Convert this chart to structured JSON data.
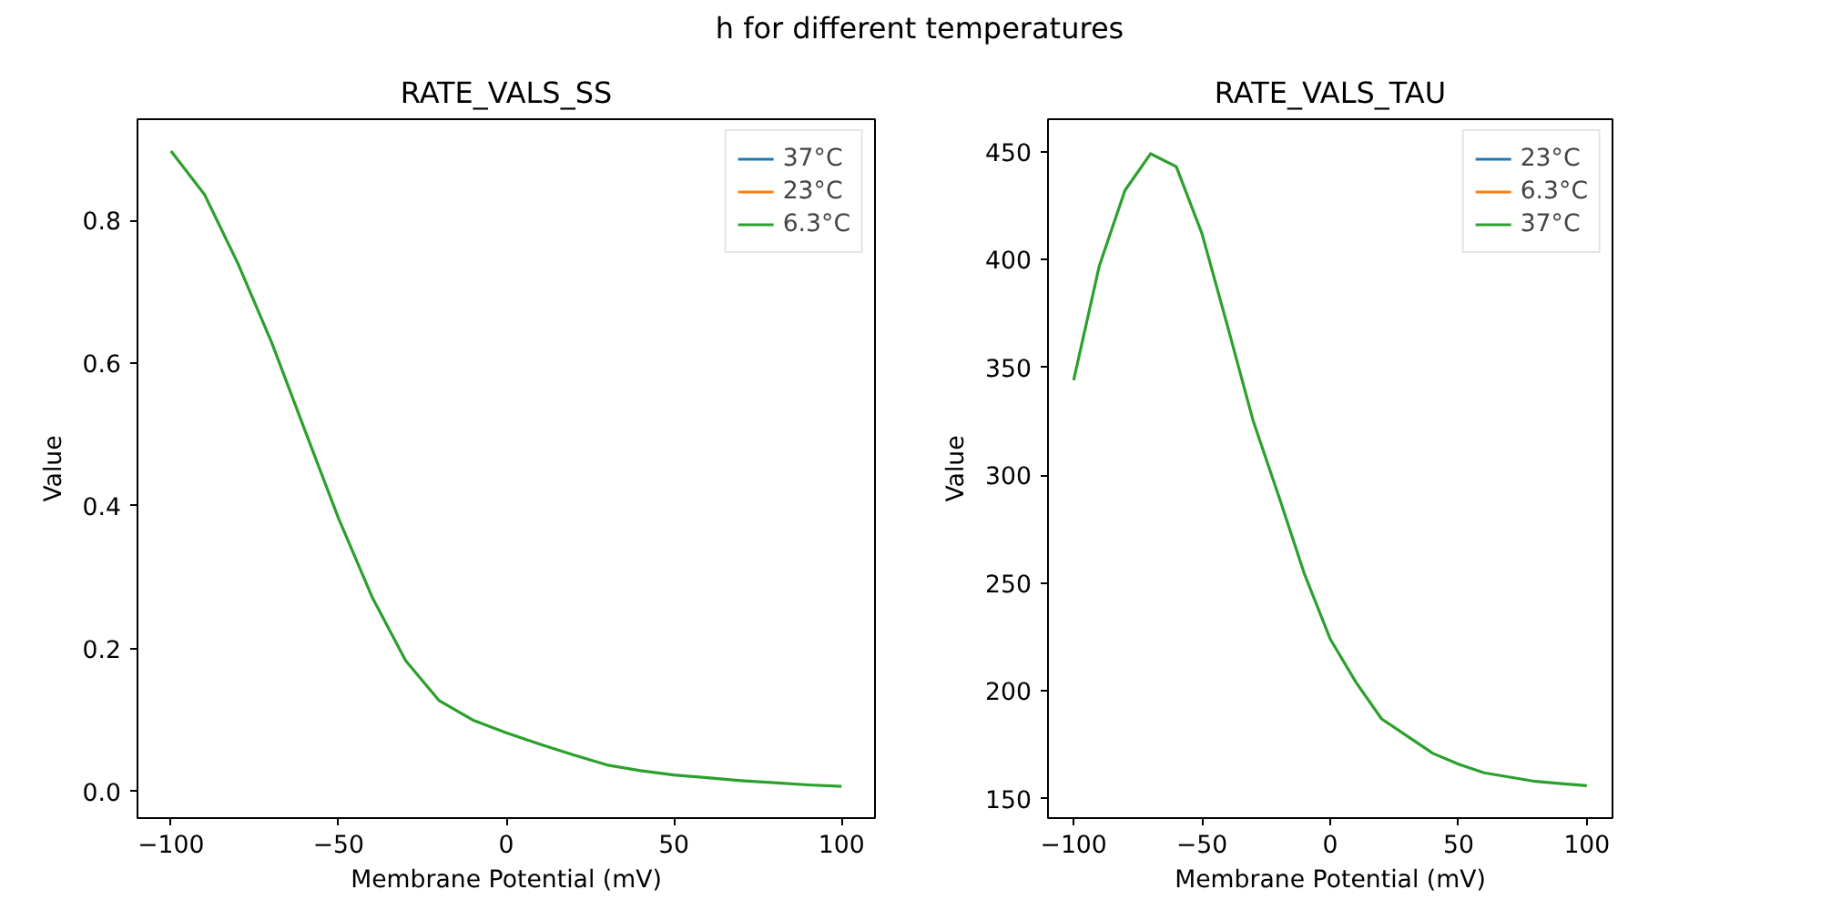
{
  "chart_data": [
    {
      "type": "line",
      "title": "RATE_VALS_SS",
      "xlabel": "Membrane Potential (mV)",
      "ylabel": "Value",
      "annotations": [
        "h for different temperatures"
      ],
      "x": [
        -100,
        -90,
        -80,
        -70,
        -60,
        -50,
        -40,
        -30,
        -20,
        -10,
        0,
        10,
        20,
        30,
        40,
        50,
        60,
        70,
        80,
        90,
        100
      ],
      "series": [
        {
          "name": "37°C",
          "color": "#1f77b4",
          "values": [
            null,
            null,
            null,
            null,
            null,
            null,
            null,
            null,
            null,
            null,
            null,
            null,
            null,
            null,
            null,
            null,
            null,
            null,
            null,
            null,
            null
          ]
        },
        {
          "name": "23°C",
          "color": "#ff7f0e",
          "values": [
            null,
            null,
            null,
            null,
            null,
            null,
            null,
            null,
            null,
            null,
            null,
            null,
            null,
            null,
            null,
            null,
            null,
            null,
            null,
            null,
            null
          ]
        },
        {
          "name": "6.3°C",
          "color": "#2ca02c",
          "values": [
            0.897,
            0.836,
            0.739,
            0.629,
            0.505,
            0.382,
            0.272,
            0.183,
            0.127,
            0.1,
            0.082,
            0.066,
            0.051,
            0.037,
            0.029,
            0.023,
            0.019,
            0.015,
            0.012,
            0.009,
            0.007
          ]
        }
      ],
      "xlim": [
        -110,
        110
      ],
      "xticks": [
        -100,
        -50,
        0,
        50,
        100
      ],
      "ylim": [
        -0.0375,
        0.9415
      ],
      "yticks": [
        {
          "value": 0,
          "label": "0.0"
        },
        0.2,
        0.4,
        0.6,
        0.8
      ],
      "grid": false,
      "legend": "top right"
    },
    {
      "type": "line",
      "title": "RATE_VALS_TAU",
      "xlabel": "Membrane Potential (mV)",
      "ylabel": "Value",
      "x": [
        -100,
        -90,
        -80,
        -70,
        -60,
        -50,
        -40,
        -30,
        -20,
        -10,
        0,
        10,
        20,
        30,
        40,
        50,
        60,
        70,
        80,
        90,
        100
      ],
      "series": [
        {
          "name": "23°C",
          "color": "#1f77b4",
          "values": [
            null,
            null,
            null,
            null,
            null,
            null,
            null,
            null,
            null,
            null,
            null,
            null,
            null,
            null,
            null,
            null,
            null,
            null,
            null,
            null,
            null
          ]
        },
        {
          "name": "6.3°C",
          "color": "#ff7f0e",
          "values": [
            null,
            null,
            null,
            null,
            null,
            null,
            null,
            null,
            null,
            null,
            null,
            null,
            null,
            null,
            null,
            null,
            null,
            null,
            null,
            null,
            null
          ]
        },
        {
          "name": "37°C",
          "color": "#2ca02c",
          "values": [
            344,
            397,
            432,
            449,
            443,
            412,
            369,
            325,
            290,
            254,
            224,
            204,
            187,
            179,
            171,
            166,
            162,
            160,
            158,
            157,
            156
          ]
        }
      ],
      "xlim": [
        -110,
        110
      ],
      "xticks": [
        -100,
        -50,
        0,
        50,
        100
      ],
      "ylim": [
        141,
        465
      ],
      "yticks": [
        150,
        200,
        250,
        300,
        350,
        400,
        450
      ],
      "grid": false,
      "legend": "top right"
    }
  ]
}
